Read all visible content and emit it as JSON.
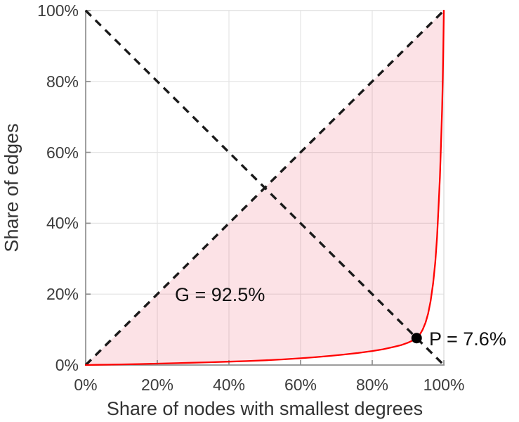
{
  "figure": {
    "x_axis_label": "Share of nodes with smallest degrees",
    "y_axis_label": "Share of edges",
    "x_tick_labels": [
      "0%",
      "20%",
      "40%",
      "60%",
      "80%",
      "100%"
    ],
    "y_tick_labels": [
      "0%",
      "20%",
      "40%",
      "60%",
      "80%",
      "100%"
    ],
    "annotations": {
      "gini_label": "G = 92.5%",
      "point_label": "P = 7.6%"
    }
  },
  "colors": {
    "background": "#ffffff",
    "curve_red": "#ff0000",
    "shade_fill": "rgba(237,52,75,0.14)",
    "dashed_black": "#1a1a1a",
    "grid": "#e4e4e4",
    "spine": "#8f8f8f",
    "spine_light": "#dcdcdc",
    "marker_black": "#000000",
    "tick_text": "#3c3c3c",
    "title_text": "#333333"
  },
  "chart_data": {
    "type": "line",
    "title": "",
    "xlabel": "Share of nodes with smallest degrees",
    "ylabel": "Share of edges",
    "xlim": [
      0,
      100
    ],
    "ylim": [
      0,
      100
    ],
    "x_ticks_percent": [
      0,
      20,
      40,
      60,
      80,
      100
    ],
    "y_ticks_percent": [
      0,
      20,
      40,
      60,
      80,
      100
    ],
    "grid": true,
    "legend": "none",
    "series": [
      {
        "name": "lorenz-curve",
        "type": "line",
        "color": "#ff0000",
        "points": [
          [
            0,
            0
          ],
          [
            3,
            0.05
          ],
          [
            6,
            0.1
          ],
          [
            10,
            0.18
          ],
          [
            15,
            0.28
          ],
          [
            20,
            0.4
          ],
          [
            25,
            0.52
          ],
          [
            30,
            0.66
          ],
          [
            35,
            0.8
          ],
          [
            40,
            0.95
          ],
          [
            45,
            1.12
          ],
          [
            50,
            1.32
          ],
          [
            55,
            1.58
          ],
          [
            60,
            1.9
          ],
          [
            64,
            2.2
          ],
          [
            68,
            2.55
          ],
          [
            72,
            2.95
          ],
          [
            76,
            3.4
          ],
          [
            80,
            3.95
          ],
          [
            83,
            4.45
          ],
          [
            86,
            5.1
          ],
          [
            88,
            5.6
          ],
          [
            90,
            6.3
          ],
          [
            91.3,
            6.9
          ],
          [
            92.4,
            7.6
          ],
          [
            93.3,
            8.6
          ],
          [
            94.1,
            10
          ],
          [
            94.9,
            12
          ],
          [
            95.6,
            14.5
          ],
          [
            96.3,
            18
          ],
          [
            97,
            23
          ],
          [
            97.6,
            29
          ],
          [
            98.1,
            36
          ],
          [
            98.5,
            44
          ],
          [
            98.9,
            53
          ],
          [
            99.2,
            62
          ],
          [
            99.5,
            72
          ],
          [
            99.7,
            81
          ],
          [
            99.85,
            89
          ],
          [
            100,
            100
          ]
        ]
      },
      {
        "name": "equality-diagonal",
        "type": "dashed-line",
        "color": "#1a1a1a",
        "points": [
          [
            0,
            0
          ],
          [
            100,
            100
          ]
        ]
      },
      {
        "name": "anti-diagonal",
        "type": "dashed-line",
        "color": "#1a1a1a",
        "points": [
          [
            0,
            100
          ],
          [
            100,
            0
          ]
        ]
      }
    ],
    "shaded_region": {
      "between": [
        "equality-diagonal",
        "lorenz-curve"
      ],
      "fill": "rgba(237,52,75,0.14)"
    },
    "marker": {
      "x": 92.4,
      "y": 7.6,
      "color": "#000000",
      "label": "P = 7.6%"
    },
    "gini": {
      "label": "G = 92.5%",
      "value": 92.5
    },
    "crossing_point": {
      "label": "P = 7.6%",
      "value": 7.6
    }
  }
}
